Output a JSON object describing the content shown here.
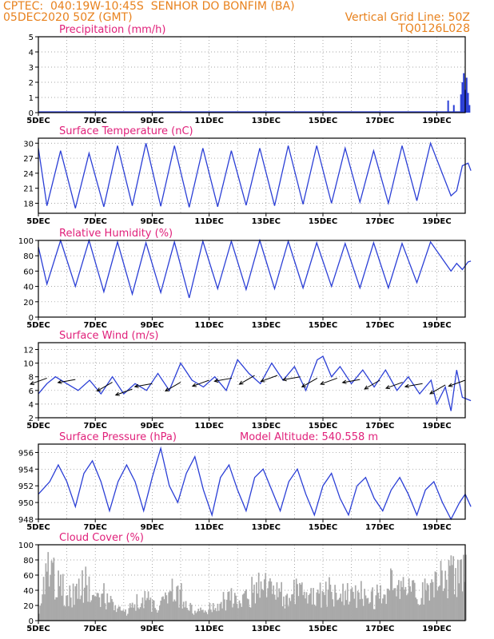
{
  "header": {
    "line1_left": "CPTEC:  040:19W-10:45S  SENHOR DO BONFIM (BA)",
    "line2_left": "05DEC2020 50Z (GMT)",
    "line2_right": "Vertical Grid Line: 50Z",
    "line3_right": "TQ0126L028"
  },
  "colors": {
    "line": "#2b3fd6",
    "bar": "#a9a9a9",
    "title": "#e0207a",
    "header": "#e8821e"
  },
  "x_axis": {
    "labels": [
      "5DEC",
      "7DEC",
      "9DEC",
      "11DEC",
      "13DEC",
      "15DEC",
      "17DEC",
      "19DEC"
    ],
    "range_days": [
      5,
      20
    ]
  },
  "chart_data": [
    {
      "type": "bar",
      "title": "Precipitation (mm/h)",
      "ylim": [
        0,
        5
      ],
      "yticks": [
        0,
        1,
        2,
        3,
        4,
        5
      ],
      "points": [
        [
          19.4,
          0.8
        ],
        [
          19.6,
          0.5
        ],
        [
          19.85,
          1.2
        ],
        [
          19.9,
          2.0
        ],
        [
          19.95,
          2.6
        ],
        [
          20.0,
          1.5
        ],
        [
          20.05,
          2.3
        ],
        [
          20.1,
          1.3
        ],
        [
          20.15,
          0.5
        ]
      ]
    },
    {
      "type": "line",
      "title": "Surface Temperature (nC)",
      "ylim": [
        16,
        31
      ],
      "yticks": [
        18,
        21,
        24,
        27,
        30
      ],
      "diurnal": {
        "min": [
          17.5,
          17.0,
          17.3,
          17.5,
          17.4,
          17.2,
          17.3,
          17.6,
          17.5,
          17.8,
          18.0,
          18.2,
          18.0,
          18.5
        ],
        "max": [
          28.5,
          28.0,
          29.5,
          30.0,
          29.5,
          29.0,
          28.5,
          29.0,
          29.5,
          29.5,
          29.0,
          28.5,
          29.5,
          30.0
        ]
      },
      "end": [
        [
          19.5,
          19.5
        ],
        [
          19.7,
          20.5
        ],
        [
          19.9,
          25.5
        ],
        [
          20.1,
          26.0
        ],
        [
          20.2,
          24.5
        ]
      ]
    },
    {
      "type": "line",
      "title": "Relative Humidity (%)",
      "ylim": [
        0,
        100
      ],
      "yticks": [
        0,
        20,
        40,
        60,
        80,
        100
      ],
      "diurnal": {
        "min": [
          43,
          40,
          33,
          30,
          32,
          25,
          37,
          36,
          37,
          38,
          40,
          38,
          38,
          45
        ],
        "max": [
          100,
          100,
          98,
          97,
          98,
          99,
          99,
          100,
          99,
          97,
          96,
          97,
          96,
          98
        ]
      },
      "end": [
        [
          19.5,
          60
        ],
        [
          19.7,
          70
        ],
        [
          19.9,
          62
        ],
        [
          20.1,
          72
        ],
        [
          20.2,
          73
        ]
      ]
    },
    {
      "type": "line",
      "title": "Surface Wind (m/s)",
      "ylim": [
        2,
        13
      ],
      "yticks": [
        2,
        4,
        6,
        8,
        10,
        12
      ],
      "points": [
        [
          5.0,
          5.5
        ],
        [
          5.3,
          7.0
        ],
        [
          5.6,
          8.0
        ],
        [
          6.0,
          7.0
        ],
        [
          6.4,
          6.0
        ],
        [
          6.8,
          7.5
        ],
        [
          7.2,
          5.5
        ],
        [
          7.6,
          8.0
        ],
        [
          8.0,
          5.5
        ],
        [
          8.4,
          7.0
        ],
        [
          8.8,
          6.0
        ],
        [
          9.2,
          8.5
        ],
        [
          9.6,
          6.0
        ],
        [
          10.0,
          10.0
        ],
        [
          10.4,
          7.5
        ],
        [
          10.8,
          6.5
        ],
        [
          11.2,
          8.0
        ],
        [
          11.6,
          6.0
        ],
        [
          12.0,
          10.5
        ],
        [
          12.4,
          8.5
        ],
        [
          12.8,
          7.0
        ],
        [
          13.2,
          10.0
        ],
        [
          13.6,
          7.5
        ],
        [
          14.0,
          9.5
        ],
        [
          14.4,
          6.0
        ],
        [
          14.8,
          10.5
        ],
        [
          15.0,
          11.0
        ],
        [
          15.3,
          8.0
        ],
        [
          15.6,
          9.5
        ],
        [
          16.0,
          7.0
        ],
        [
          16.4,
          9.0
        ],
        [
          16.8,
          6.5
        ],
        [
          17.2,
          9.0
        ],
        [
          17.6,
          6.0
        ],
        [
          18.0,
          8.0
        ],
        [
          18.4,
          5.5
        ],
        [
          18.8,
          7.5
        ],
        [
          19.0,
          4.0
        ],
        [
          19.3,
          6.5
        ],
        [
          19.5,
          3.0
        ],
        [
          19.7,
          9.0
        ],
        [
          19.9,
          5.0
        ],
        [
          20.2,
          4.5
        ]
      ],
      "vectors": [
        [
          5.3,
          7.8
        ],
        [
          6.3,
          7.6
        ],
        [
          7.6,
          7.2
        ],
        [
          8.3,
          6.2
        ],
        [
          9.0,
          7.0
        ],
        [
          10.0,
          7.2
        ],
        [
          11.0,
          7.5
        ],
        [
          11.8,
          7.8
        ],
        [
          12.6,
          8.2
        ],
        [
          13.4,
          8.2
        ],
        [
          14.2,
          8.0
        ],
        [
          14.8,
          7.8
        ],
        [
          15.5,
          7.8
        ],
        [
          16.3,
          7.6
        ],
        [
          17.0,
          7.5
        ],
        [
          17.8,
          7.2
        ],
        [
          18.5,
          7.0
        ],
        [
          19.3,
          6.8
        ],
        [
          20.0,
          7.5
        ]
      ]
    },
    {
      "type": "line",
      "title": "Surface Pressure (hPa)",
      "subtitle": "Model Altitude: 540.558  m",
      "ylim": [
        948,
        957
      ],
      "yticks": [
        948,
        950,
        952,
        954,
        956
      ],
      "points": [
        [
          5.0,
          951
        ],
        [
          5.4,
          952.5
        ],
        [
          5.7,
          954.5
        ],
        [
          6.0,
          952.5
        ],
        [
          6.3,
          949.5
        ],
        [
          6.6,
          953.5
        ],
        [
          6.9,
          955
        ],
        [
          7.2,
          952.5
        ],
        [
          7.5,
          949
        ],
        [
          7.8,
          952.5
        ],
        [
          8.1,
          954.5
        ],
        [
          8.4,
          952.5
        ],
        [
          8.7,
          949
        ],
        [
          9.0,
          953
        ],
        [
          9.3,
          956.5
        ],
        [
          9.6,
          952
        ],
        [
          9.9,
          950
        ],
        [
          10.2,
          953.5
        ],
        [
          10.5,
          955.5
        ],
        [
          10.8,
          951.5
        ],
        [
          11.1,
          948.5
        ],
        [
          11.4,
          953
        ],
        [
          11.7,
          954.5
        ],
        [
          12.0,
          951.5
        ],
        [
          12.3,
          949
        ],
        [
          12.6,
          953
        ],
        [
          12.9,
          954
        ],
        [
          13.2,
          951.5
        ],
        [
          13.5,
          949
        ],
        [
          13.8,
          952.5
        ],
        [
          14.1,
          954
        ],
        [
          14.4,
          951
        ],
        [
          14.7,
          948.5
        ],
        [
          15.0,
          952
        ],
        [
          15.3,
          953.5
        ],
        [
          15.6,
          950.5
        ],
        [
          15.9,
          948.5
        ],
        [
          16.2,
          952
        ],
        [
          16.5,
          953
        ],
        [
          16.8,
          950.5
        ],
        [
          17.1,
          949
        ],
        [
          17.4,
          951.5
        ],
        [
          17.7,
          953
        ],
        [
          18.0,
          951
        ],
        [
          18.3,
          948.5
        ],
        [
          18.6,
          951.5
        ],
        [
          18.9,
          952.5
        ],
        [
          19.2,
          950
        ],
        [
          19.5,
          948
        ],
        [
          19.8,
          950
        ],
        [
          20.0,
          951
        ],
        [
          20.2,
          949.5
        ]
      ]
    },
    {
      "type": "bar",
      "title": "Cloud Cover (%)",
      "ylim": [
        0,
        100
      ],
      "yticks": [
        0,
        20,
        40,
        60,
        80,
        100
      ],
      "envelope": [
        [
          5.0,
          20
        ],
        [
          5.3,
          95
        ],
        [
          5.6,
          90
        ],
        [
          6.0,
          45
        ],
        [
          6.3,
          60
        ],
        [
          6.6,
          80
        ],
        [
          7.0,
          35
        ],
        [
          7.3,
          55
        ],
        [
          7.6,
          25
        ],
        [
          8.0,
          15
        ],
        [
          8.4,
          40
        ],
        [
          8.8,
          45
        ],
        [
          9.2,
          20
        ],
        [
          9.6,
          60
        ],
        [
          10.0,
          50
        ],
        [
          10.4,
          20
        ],
        [
          10.8,
          30
        ],
        [
          11.2,
          25
        ],
        [
          11.6,
          45
        ],
        [
          12.0,
          40
        ],
        [
          12.4,
          55
        ],
        [
          12.8,
          70
        ],
        [
          13.2,
          55
        ],
        [
          13.6,
          50
        ],
        [
          14.0,
          60
        ],
        [
          14.4,
          55
        ],
        [
          14.8,
          50
        ],
        [
          15.2,
          60
        ],
        [
          15.6,
          55
        ],
        [
          16.0,
          50
        ],
        [
          16.4,
          55
        ],
        [
          16.8,
          45
        ],
        [
          17.2,
          65
        ],
        [
          17.6,
          75
        ],
        [
          18.0,
          60
        ],
        [
          18.4,
          55
        ],
        [
          18.8,
          65
        ],
        [
          19.2,
          85
        ],
        [
          19.6,
          90
        ],
        [
          20.0,
          95
        ],
        [
          20.2,
          100
        ]
      ]
    }
  ]
}
